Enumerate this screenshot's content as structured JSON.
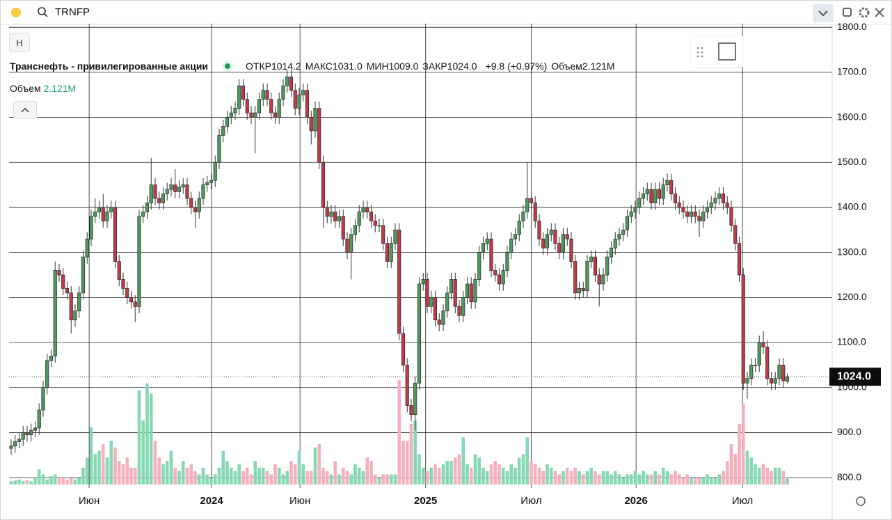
{
  "toolbar": {
    "symbol": "TRNFP",
    "button": "Н"
  },
  "chart_data": {
    "type": "candlestick",
    "title": "Транснефть - привилегированные акции",
    "header": [
      {
        "label": "ОТКР",
        "value": "1014.2"
      },
      {
        "label": "МАКС",
        "value": "1031.0"
      },
      {
        "label": "МИН",
        "value": "1009.0"
      },
      {
        "label": "ЗАКР",
        "value": "1024.0"
      }
    ],
    "change": "+9.8 (+0.97%)",
    "volume_label": "Объем",
    "volume_text": "2.121M",
    "last_label": "1024.0",
    "up_color": "#4e9a5a",
    "down_color": "#c2394c",
    "volume_up_color": "#86d8b4",
    "volume_down_color": "#f5b0bd",
    "open": [
      865,
      870,
      880,
      885,
      900,
      895,
      905,
      910,
      950,
      1000,
      1060,
      1070,
      1260,
      1250,
      1220,
      1210,
      1150,
      1170,
      1210,
      1290,
      1330,
      1380,
      1390,
      1400,
      1370,
      1390,
      1400,
      1280,
      1240,
      1220,
      1200,
      1190,
      1180,
      1380,
      1390,
      1410,
      1450,
      1420,
      1410,
      1430,
      1440,
      1450,
      1435,
      1445,
      1450,
      1420,
      1400,
      1390,
      1420,
      1450,
      1455,
      1460,
      1500,
      1560,
      1580,
      1600,
      1610,
      1620,
      1670,
      1640,
      1610,
      1600,
      1610,
      1640,
      1660,
      1640,
      1610,
      1600,
      1640,
      1670,
      1690,
      1660,
      1620,
      1650,
      1660,
      1600,
      1570,
      1620,
      1500,
      1400,
      1380,
      1390,
      1370,
      1380,
      1330,
      1300,
      1340,
      1360,
      1390,
      1400,
      1390,
      1370,
      1360,
      1360,
      1320,
      1280,
      1320,
      1350,
      1120,
      1050,
      960,
      940,
      1010,
      1230,
      1240,
      1180,
      1200,
      1150,
      1140,
      1170,
      1210,
      1240,
      1180,
      1160,
      1200,
      1230,
      1190,
      1240,
      1300,
      1320,
      1330,
      1260,
      1250,
      1230,
      1260,
      1300,
      1330,
      1340,
      1370,
      1390,
      1420,
      1410,
      1370,
      1330,
      1310,
      1340,
      1350,
      1320,
      1300,
      1340,
      1330,
      1280,
      1210,
      1220,
      1215,
      1280,
      1290,
      1250,
      1230,
      1250,
      1290,
      1310,
      1330,
      1340,
      1350,
      1380,
      1390,
      1400,
      1420,
      1430,
      1440,
      1410,
      1440,
      1420,
      1450,
      1460,
      1430,
      1410,
      1400,
      1390,
      1380,
      1390,
      1380,
      1370,
      1390,
      1400,
      1410,
      1420,
      1430,
      1410,
      1400,
      1360,
      1320,
      1250,
      1010,
      1020,
      1050,
      1050,
      1100,
      1090,
      1020,
      1010,
      1020,
      1050,
      1014.2
    ],
    "high": [
      885,
      895,
      900,
      915,
      915,
      920,
      925,
      965,
      1015,
      1075,
      1085,
      1280,
      1275,
      1265,
      1235,
      1225,
      1185,
      1225,
      1305,
      1345,
      1395,
      1420,
      1415,
      1430,
      1405,
      1415,
      1415,
      1295,
      1255,
      1235,
      1215,
      1205,
      1395,
      1405,
      1425,
      1510,
      1465,
      1435,
      1445,
      1455,
      1465,
      1485,
      1460,
      1465,
      1465,
      1435,
      1415,
      1435,
      1465,
      1470,
      1475,
      1515,
      1575,
      1595,
      1615,
      1625,
      1635,
      1685,
      1685,
      1655,
      1625,
      1625,
      1655,
      1675,
      1675,
      1655,
      1625,
      1655,
      1685,
      1705,
      1705,
      1675,
      1665,
      1675,
      1675,
      1615,
      1635,
      1635,
      1515,
      1415,
      1405,
      1405,
      1395,
      1395,
      1345,
      1355,
      1375,
      1405,
      1415,
      1415,
      1405,
      1385,
      1375,
      1375,
      1335,
      1335,
      1365,
      1365,
      1135,
      1065,
      975,
      1025,
      1245,
      1255,
      1255,
      1215,
      1215,
      1165,
      1185,
      1225,
      1255,
      1255,
      1195,
      1215,
      1245,
      1245,
      1255,
      1315,
      1335,
      1345,
      1345,
      1275,
      1265,
      1275,
      1315,
      1345,
      1355,
      1385,
      1405,
      1500,
      1435,
      1425,
      1385,
      1345,
      1355,
      1365,
      1365,
      1335,
      1355,
      1355,
      1345,
      1295,
      1235,
      1235,
      1295,
      1305,
      1305,
      1265,
      1265,
      1305,
      1325,
      1345,
      1355,
      1365,
      1395,
      1405,
      1415,
      1435,
      1445,
      1455,
      1455,
      1455,
      1455,
      1465,
      1475,
      1475,
      1445,
      1425,
      1415,
      1405,
      1405,
      1405,
      1395,
      1405,
      1415,
      1425,
      1435,
      1445,
      1445,
      1425,
      1415,
      1375,
      1335,
      1265,
      1035,
      1065,
      1065,
      1115,
      1125,
      1105,
      1035,
      1035,
      1065,
      1065,
      1031.0
    ],
    "low": [
      850,
      855,
      865,
      870,
      880,
      880,
      890,
      895,
      935,
      985,
      1045,
      1055,
      1235,
      1205,
      1195,
      1120,
      1135,
      1155,
      1195,
      1275,
      1315,
      1365,
      1375,
      1355,
      1355,
      1375,
      1265,
      1225,
      1205,
      1185,
      1175,
      1145,
      1165,
      1365,
      1375,
      1395,
      1405,
      1395,
      1395,
      1415,
      1425,
      1420,
      1420,
      1430,
      1405,
      1385,
      1355,
      1375,
      1405,
      1435,
      1440,
      1445,
      1485,
      1545,
      1565,
      1585,
      1595,
      1605,
      1625,
      1595,
      1585,
      1520,
      1595,
      1625,
      1625,
      1595,
      1585,
      1585,
      1625,
      1655,
      1645,
      1605,
      1605,
      1635,
      1585,
      1540,
      1555,
      1485,
      1355,
      1365,
      1365,
      1355,
      1355,
      1315,
      1285,
      1240,
      1325,
      1345,
      1375,
      1375,
      1355,
      1345,
      1345,
      1305,
      1265,
      1265,
      1305,
      1105,
      1035,
      945,
      925,
      905,
      995,
      1215,
      1165,
      1165,
      1135,
      1125,
      1125,
      1155,
      1195,
      1165,
      1145,
      1145,
      1185,
      1175,
      1175,
      1225,
      1285,
      1305,
      1245,
      1235,
      1215,
      1215,
      1245,
      1285,
      1315,
      1325,
      1355,
      1375,
      1395,
      1355,
      1315,
      1295,
      1295,
      1325,
      1305,
      1285,
      1285,
      1315,
      1265,
      1195,
      1195,
      1200,
      1200,
      1265,
      1235,
      1180,
      1215,
      1235,
      1275,
      1295,
      1315,
      1325,
      1335,
      1365,
      1375,
      1385,
      1405,
      1415,
      1395,
      1395,
      1405,
      1405,
      1435,
      1415,
      1395,
      1385,
      1375,
      1365,
      1365,
      1365,
      1335,
      1355,
      1375,
      1385,
      1395,
      1405,
      1395,
      1385,
      1345,
      1305,
      1235,
      995,
      975,
      1005,
      1035,
      1035,
      1075,
      1005,
      995,
      995,
      1005,
      1000,
      1009.0
    ],
    "close": [
      870,
      880,
      885,
      900,
      895,
      905,
      910,
      950,
      1000,
      1060,
      1070,
      1260,
      1250,
      1220,
      1210,
      1150,
      1170,
      1210,
      1290,
      1330,
      1380,
      1390,
      1400,
      1370,
      1390,
      1400,
      1280,
      1240,
      1220,
      1200,
      1190,
      1180,
      1380,
      1390,
      1410,
      1450,
      1420,
      1410,
      1430,
      1440,
      1450,
      1435,
      1445,
      1450,
      1420,
      1400,
      1390,
      1420,
      1450,
      1455,
      1460,
      1500,
      1560,
      1580,
      1600,
      1610,
      1620,
      1670,
      1640,
      1610,
      1600,
      1610,
      1640,
      1660,
      1640,
      1610,
      1600,
      1640,
      1670,
      1690,
      1660,
      1620,
      1650,
      1660,
      1600,
      1570,
      1620,
      1500,
      1400,
      1380,
      1390,
      1370,
      1380,
      1330,
      1300,
      1340,
      1360,
      1390,
      1400,
      1390,
      1370,
      1360,
      1360,
      1320,
      1280,
      1320,
      1350,
      1120,
      1050,
      960,
      940,
      1010,
      1230,
      1240,
      1180,
      1200,
      1150,
      1140,
      1170,
      1210,
      1240,
      1180,
      1160,
      1200,
      1230,
      1190,
      1240,
      1300,
      1320,
      1330,
      1260,
      1250,
      1230,
      1260,
      1300,
      1330,
      1340,
      1370,
      1390,
      1420,
      1410,
      1370,
      1330,
      1310,
      1340,
      1350,
      1320,
      1300,
      1340,
      1330,
      1280,
      1210,
      1220,
      1215,
      1280,
      1290,
      1250,
      1230,
      1250,
      1290,
      1310,
      1330,
      1340,
      1350,
      1380,
      1390,
      1400,
      1420,
      1430,
      1440,
      1410,
      1440,
      1420,
      1450,
      1460,
      1430,
      1410,
      1400,
      1390,
      1380,
      1390,
      1380,
      1370,
      1390,
      1400,
      1410,
      1420,
      1430,
      1410,
      1400,
      1360,
      1320,
      1250,
      1010,
      1020,
      1050,
      1050,
      1100,
      1090,
      1020,
      1010,
      1020,
      1050,
      1015,
      1024.0
    ],
    "volume": [
      1,
      1.2,
      1.5,
      1,
      1.3,
      1,
      2,
      4.5,
      3,
      1.5,
      2.5,
      3,
      2,
      1.8,
      1.5,
      2,
      1.5,
      2,
      5,
      8,
      17,
      9,
      10,
      12,
      8,
      13,
      11,
      7,
      6,
      8,
      5,
      5,
      28,
      19,
      30,
      27,
      13,
      8,
      6,
      7,
      10,
      5,
      4,
      7,
      5,
      6,
      4,
      3,
      5,
      3,
      2,
      3,
      5,
      10,
      7,
      5,
      4,
      6,
      4,
      5,
      3,
      7,
      5,
      5,
      4,
      3,
      6,
      5,
      3,
      4,
      7,
      6,
      10,
      6,
      4,
      4,
      11,
      12,
      5,
      4,
      3,
      7,
      3,
      5,
      4,
      3,
      6,
      5,
      4,
      8,
      7,
      3,
      2,
      3,
      3,
      3,
      3,
      31,
      13,
      13,
      18,
      19,
      9,
      5,
      4,
      5,
      6,
      5,
      6,
      7,
      7,
      8,
      9,
      14,
      6,
      5,
      9,
      8,
      5,
      4,
      6,
      7,
      6,
      5,
      4,
      6,
      5,
      8,
      9,
      14,
      7,
      6,
      5,
      4,
      6,
      5,
      4,
      3,
      4,
      5,
      4,
      5,
      4,
      3,
      4,
      5,
      4,
      3,
      4,
      4,
      3,
      4,
      3,
      2,
      3,
      3,
      4,
      3,
      4,
      3,
      3,
      4,
      3,
      5,
      4,
      3,
      4,
      3,
      2,
      3,
      2,
      2,
      2,
      2,
      3,
      2,
      2,
      3,
      4,
      7,
      12,
      9,
      18,
      24,
      10,
      8,
      6,
      5,
      6,
      5,
      4,
      5,
      5,
      4,
      2.121
    ],
    "ylim": [
      777,
      1808
    ],
    "yticks": [
      {
        "value": 800,
        "label": "800.0"
      },
      {
        "value": 900,
        "label": "900.0"
      },
      {
        "value": 1000,
        "label": "1000.0"
      },
      {
        "value": 1100,
        "label": "1100.0"
      },
      {
        "value": 1200,
        "label": "1200.0"
      },
      {
        "value": 1300,
        "label": "1300.0"
      },
      {
        "value": 1400,
        "label": "1400.0"
      },
      {
        "value": 1500,
        "label": "1500.0"
      },
      {
        "value": 1600,
        "label": "1600.0"
      },
      {
        "value": 1700,
        "label": "1700.0"
      },
      {
        "value": 1800,
        "label": "1800.0"
      }
    ],
    "xticks": [
      {
        "value": 19.5,
        "label": "Июн"
      },
      {
        "value": 50.1,
        "label": "2024"
      },
      {
        "value": 72.2,
        "label": "Июн"
      },
      {
        "value": 103.6,
        "label": "2025"
      },
      {
        "value": 130,
        "label": "Июл"
      },
      {
        "value": 156.2,
        "label": "2026"
      },
      {
        "value": 182.8,
        "label": "Июл"
      }
    ],
    "grid": true
  }
}
